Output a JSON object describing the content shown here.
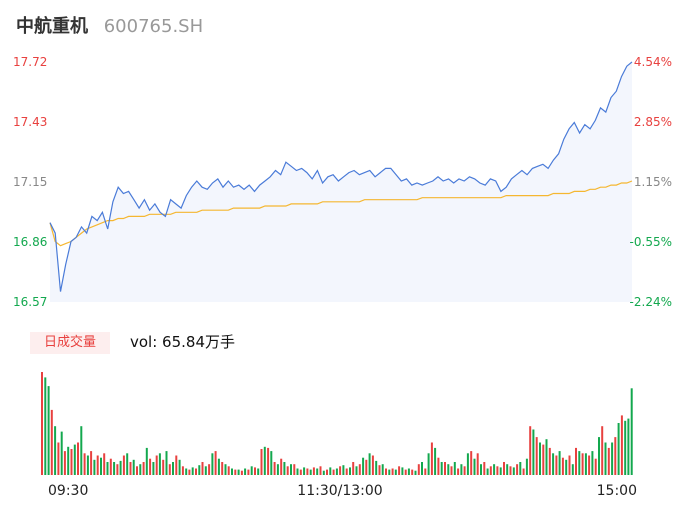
{
  "header": {
    "name": "中航重机",
    "code": "600765.SH"
  },
  "price_axis": {
    "left_ticks": [
      "17.72",
      "17.43",
      "17.15",
      "16.86",
      "16.57"
    ],
    "right_ticks": [
      "4.54%",
      "2.85%",
      "1.15%",
      "-0.55%",
      "-2.24%"
    ],
    "tick_colors": [
      "#e8413f",
      "#e8413f",
      "#888888",
      "#13a84e",
      "#13a84e"
    ]
  },
  "volume": {
    "tab_label": "日成交量",
    "summary": "vol: 65.84万手"
  },
  "time_axis": {
    "labels": [
      "09:30",
      "11:30/13:00",
      "15:00"
    ]
  },
  "colors": {
    "up": "#e8413f",
    "down": "#13a84e",
    "price_line": "#4a7bd8",
    "avg_line": "#f5b731",
    "area": "#f3f6fd"
  },
  "chart_data": {
    "type": "line",
    "ylim": [
      16.57,
      17.72
    ],
    "price": [
      16.95,
      16.9,
      16.62,
      16.75,
      16.86,
      16.88,
      16.93,
      16.9,
      16.98,
      16.96,
      17.0,
      16.92,
      17.05,
      17.12,
      17.09,
      17.1,
      17.06,
      17.02,
      17.06,
      17.01,
      17.04,
      17.0,
      16.98,
      17.06,
      17.04,
      17.02,
      17.08,
      17.12,
      17.15,
      17.12,
      17.11,
      17.14,
      17.16,
      17.12,
      17.15,
      17.12,
      17.13,
      17.11,
      17.13,
      17.1,
      17.13,
      17.15,
      17.17,
      17.2,
      17.18,
      17.24,
      17.22,
      17.2,
      17.21,
      17.19,
      17.16,
      17.2,
      17.14,
      17.17,
      17.18,
      17.15,
      17.17,
      17.19,
      17.2,
      17.18,
      17.19,
      17.2,
      17.17,
      17.19,
      17.21,
      17.21,
      17.18,
      17.15,
      17.16,
      17.13,
      17.14,
      17.13,
      17.14,
      17.15,
      17.17,
      17.15,
      17.16,
      17.14,
      17.16,
      17.15,
      17.17,
      17.16,
      17.14,
      17.13,
      17.16,
      17.15,
      17.1,
      17.12,
      17.16,
      17.18,
      17.2,
      17.18,
      17.21,
      17.22,
      17.23,
      17.21,
      17.25,
      17.28,
      17.35,
      17.4,
      17.43,
      17.38,
      17.42,
      17.4,
      17.44,
      17.5,
      17.48,
      17.55,
      17.58,
      17.65,
      17.7,
      17.72
    ],
    "avg": [
      16.95,
      16.86,
      16.84,
      16.85,
      16.86,
      16.88,
      16.9,
      16.92,
      16.93,
      16.94,
      16.95,
      16.96,
      16.96,
      16.97,
      16.97,
      16.98,
      16.98,
      16.98,
      16.98,
      16.99,
      16.99,
      16.99,
      16.99,
      16.99,
      17.0,
      17.0,
      17.0,
      17.0,
      17.0,
      17.01,
      17.01,
      17.01,
      17.01,
      17.01,
      17.01,
      17.02,
      17.02,
      17.02,
      17.02,
      17.02,
      17.02,
      17.03,
      17.03,
      17.03,
      17.03,
      17.03,
      17.04,
      17.04,
      17.04,
      17.04,
      17.04,
      17.04,
      17.05,
      17.05,
      17.05,
      17.05,
      17.05,
      17.05,
      17.05,
      17.05,
      17.06,
      17.06,
      17.06,
      17.06,
      17.06,
      17.06,
      17.06,
      17.06,
      17.06,
      17.06,
      17.06,
      17.07,
      17.07,
      17.07,
      17.07,
      17.07,
      17.07,
      17.07,
      17.07,
      17.07,
      17.07,
      17.07,
      17.07,
      17.07,
      17.07,
      17.07,
      17.07,
      17.08,
      17.08,
      17.08,
      17.08,
      17.08,
      17.08,
      17.08,
      17.08,
      17.08,
      17.09,
      17.09,
      17.09,
      17.09,
      17.1,
      17.1,
      17.1,
      17.11,
      17.11,
      17.12,
      17.12,
      17.13,
      17.13,
      17.14,
      17.14,
      17.15
    ],
    "volume": [
      95,
      90,
      82,
      60,
      45,
      30,
      40,
      22,
      26,
      24,
      28,
      30,
      45,
      20,
      18,
      22,
      14,
      18,
      16,
      20,
      12,
      15,
      12,
      10,
      13,
      18,
      20,
      12,
      14,
      8,
      10,
      12,
      25,
      15,
      12,
      18,
      20,
      14,
      22,
      10,
      12,
      18,
      14,
      8,
      6,
      5,
      7,
      6,
      9,
      12,
      8,
      10,
      20,
      22,
      15,
      12,
      10,
      8,
      6,
      5,
      5,
      4,
      6,
      5,
      8,
      7,
      6,
      24,
      26,
      25,
      22,
      12,
      10,
      15,
      12,
      8,
      10,
      10,
      6,
      5,
      7,
      6,
      5,
      7,
      6,
      8,
      4,
      5,
      7,
      5,
      6,
      8,
      9,
      6,
      7,
      12,
      8,
      10,
      16,
      14,
      20,
      18,
      13,
      9,
      10,
      6,
      5,
      6,
      5,
      8,
      7,
      5,
      6,
      5,
      4,
      10,
      12,
      6,
      20,
      30,
      25,
      16,
      12,
      12,
      10,
      8,
      12,
      6,
      10,
      8,
      20,
      22,
      15,
      20,
      10,
      12,
      6,
      8,
      10,
      8,
      7,
      12,
      10,
      8,
      7,
      10,
      12,
      6,
      15,
      45,
      42,
      35,
      30,
      28,
      33,
      25,
      20,
      18,
      22,
      16,
      14,
      18,
      10,
      25,
      22,
      20,
      20,
      18,
      22,
      15,
      35,
      45,
      30,
      25,
      30,
      35,
      48,
      55,
      50,
      52,
      80
    ],
    "volume_up": [
      true,
      false,
      false,
      true,
      false,
      true,
      false,
      true,
      false,
      true,
      false,
      true,
      false,
      true,
      false,
      true,
      false,
      true,
      false,
      true,
      false,
      true,
      false,
      true,
      false,
      true,
      false,
      true,
      false,
      true,
      false,
      true,
      false,
      true,
      false,
      true,
      false,
      true,
      false,
      true,
      false,
      true,
      false,
      true,
      false,
      true,
      false,
      true,
      false,
      true,
      false,
      true,
      false,
      true,
      false,
      true,
      false,
      true,
      false,
      true,
      false,
      true,
      false,
      true,
      false,
      true,
      false,
      true,
      false,
      true,
      false,
      true,
      false,
      true,
      false,
      true,
      false,
      true,
      false,
      true,
      false,
      true,
      false,
      true,
      false,
      true,
      false,
      true,
      false,
      true,
      false,
      true,
      false,
      true,
      false,
      true,
      false,
      true,
      false,
      true,
      false,
      true,
      false,
      true,
      false,
      true,
      false,
      true,
      false,
      true,
      false,
      true,
      false,
      true,
      false,
      true,
      false,
      true,
      false,
      true,
      false,
      true,
      false,
      true,
      false,
      true,
      false,
      true,
      false,
      true,
      false,
      true,
      false,
      true,
      false,
      true,
      false,
      true,
      false,
      true,
      false,
      true,
      false,
      true,
      false,
      true,
      false,
      true,
      false,
      true,
      false,
      true,
      false,
      true,
      false,
      true,
      false,
      true,
      false,
      true,
      false,
      true,
      false,
      true,
      false,
      true,
      false,
      true,
      false,
      true,
      false,
      true,
      false,
      true,
      false,
      true,
      false,
      true
    ]
  }
}
